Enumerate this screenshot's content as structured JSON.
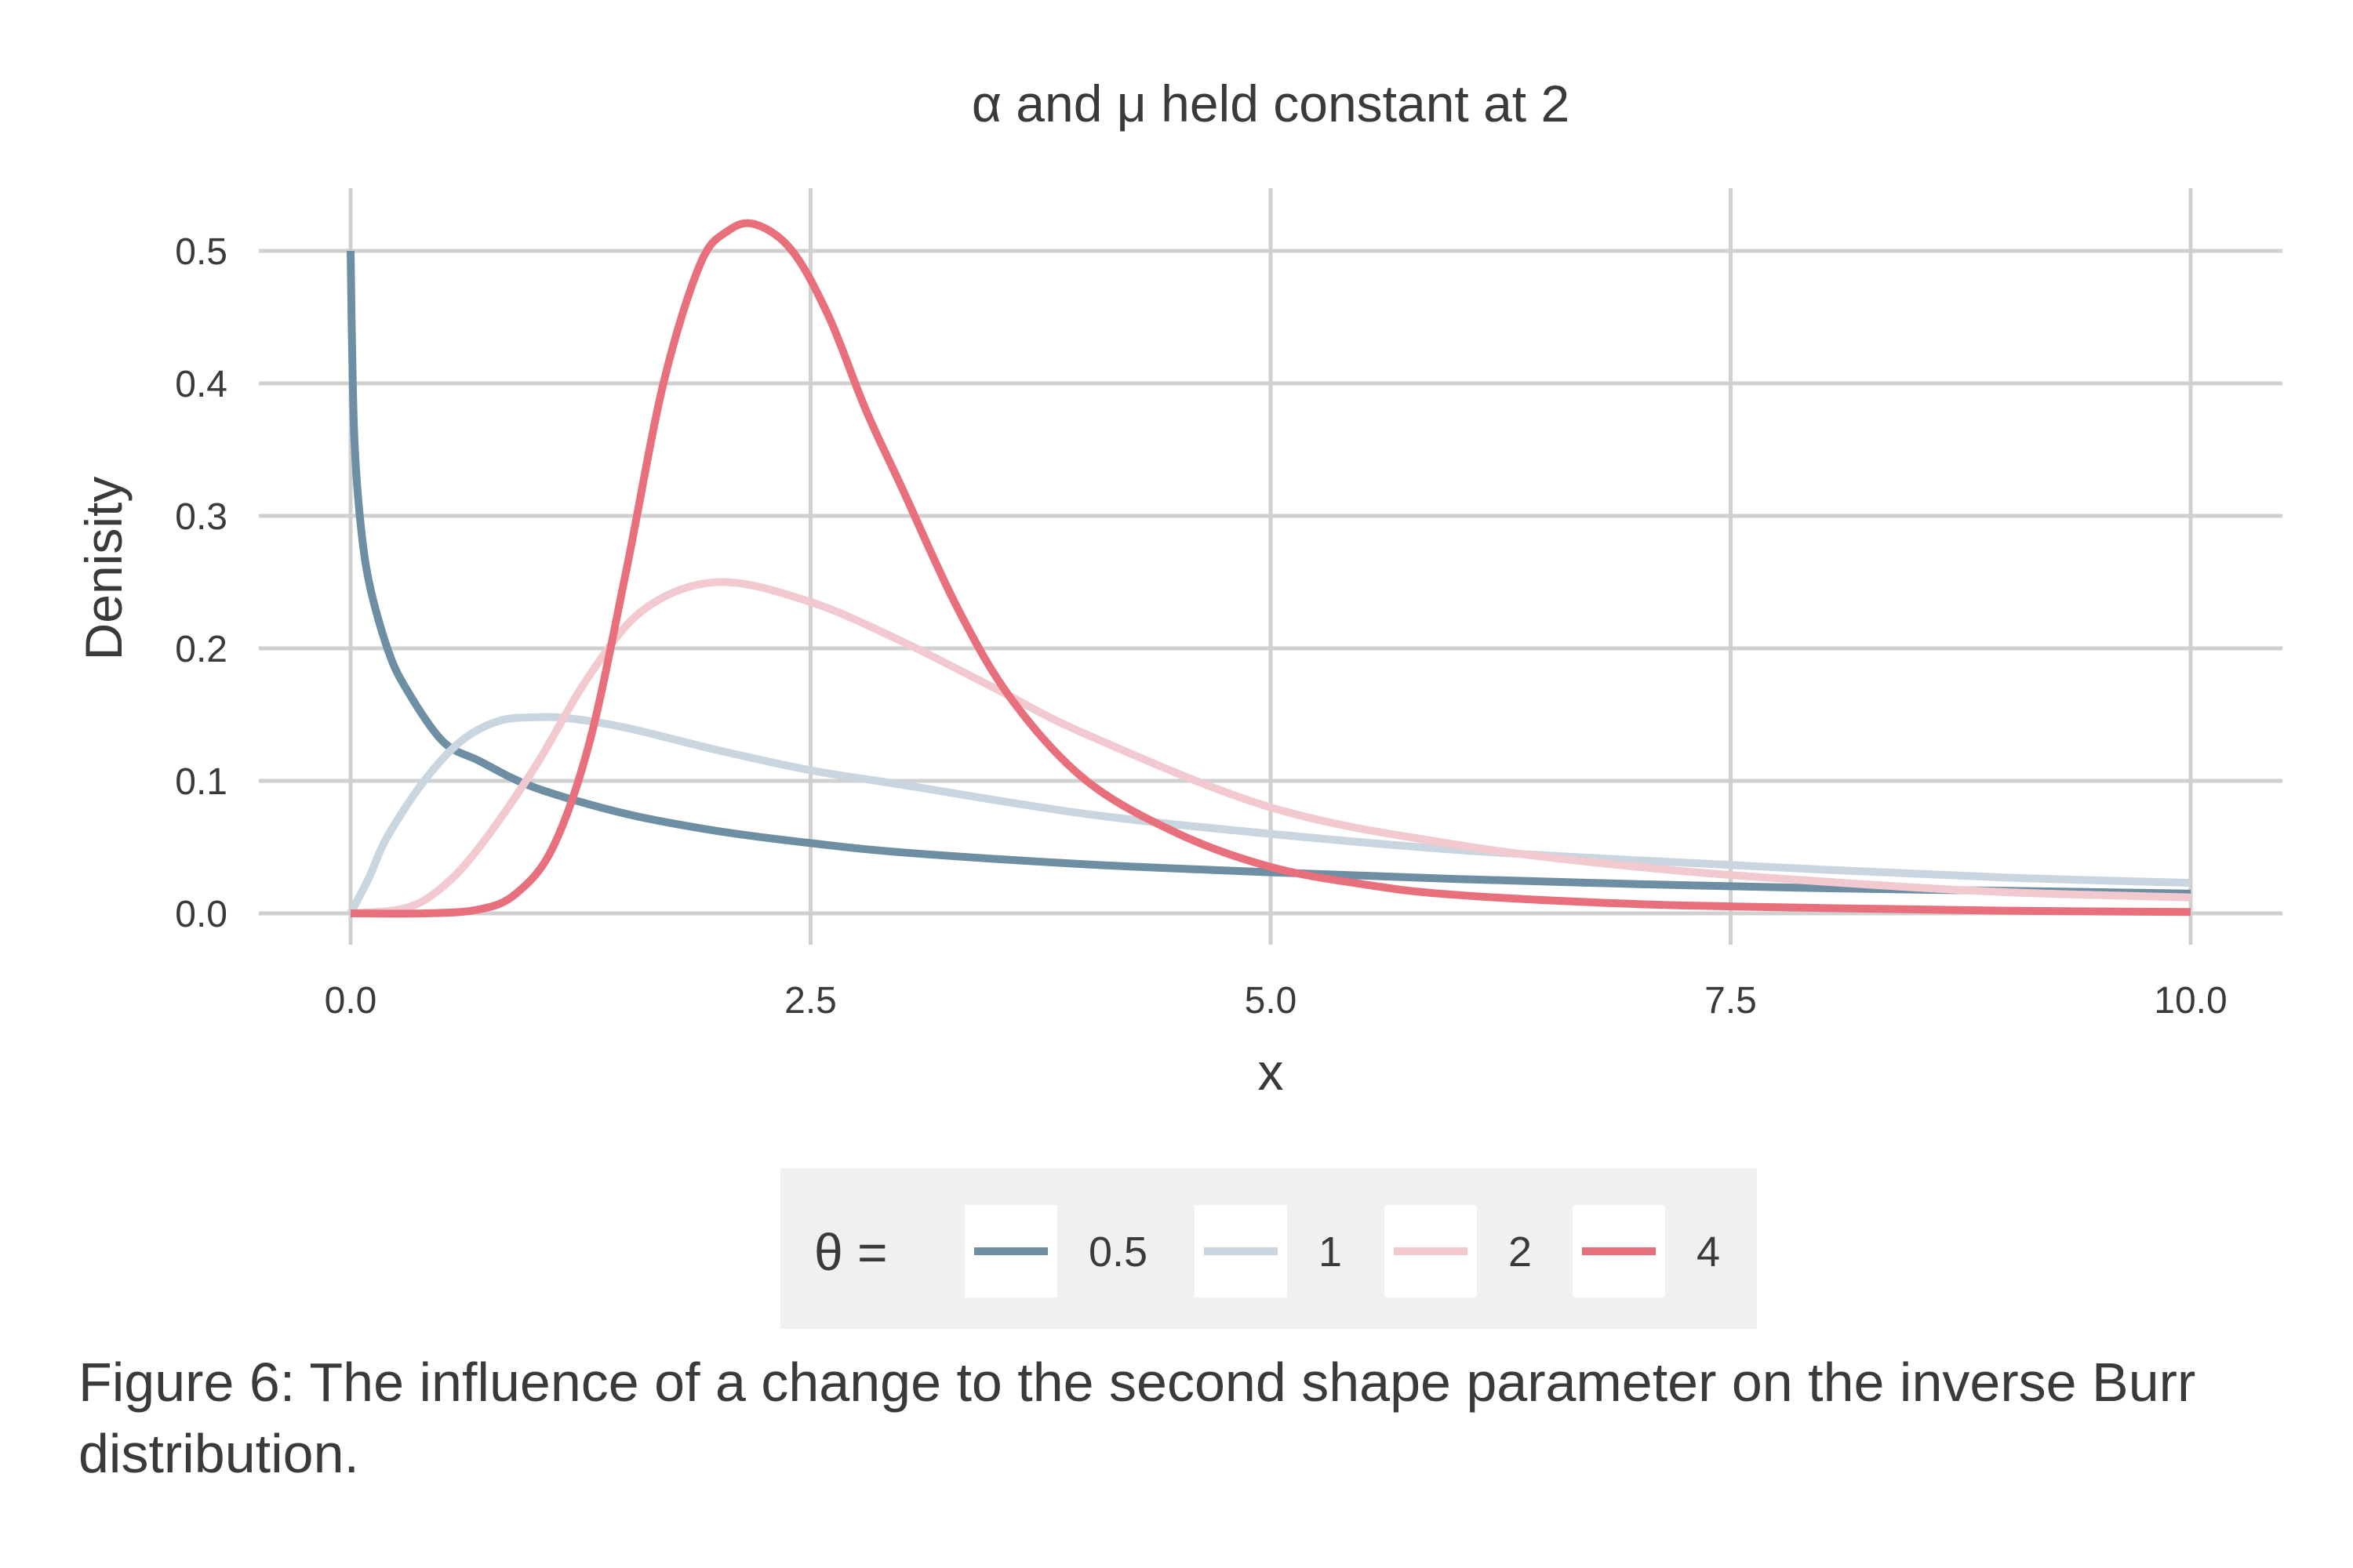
{
  "chart_data": {
    "type": "line",
    "title": "α and μ held constant at 2",
    "xlabel": "x",
    "ylabel": "Denisity",
    "xlim": [
      0,
      10
    ],
    "ylim": [
      0,
      0.5
    ],
    "x_ticks": [
      "0.0",
      "2.5",
      "5.0",
      "7.5",
      "10.0"
    ],
    "y_ticks": [
      "0.0",
      "0.1",
      "0.2",
      "0.3",
      "0.4",
      "0.5"
    ],
    "grid": true,
    "legend_placement": "bottom",
    "legend_title": "θ =",
    "series": [
      {
        "name": "0.5",
        "color": "#6d8ea3",
        "x": [
          0.0,
          0.005,
          0.02,
          0.05,
          0.1,
          0.2,
          0.3,
          0.5,
          0.7,
          1.0,
          1.5,
          2.0,
          2.5,
          3.0,
          4.0,
          5.0,
          6.0,
          7.0,
          8.0,
          9.0,
          10.0
        ],
        "y": [
          0.5,
          0.45,
          0.36,
          0.3,
          0.25,
          0.2,
          0.17,
          0.13,
          0.115,
          0.095,
          0.075,
          0.062,
          0.053,
          0.046,
          0.037,
          0.031,
          0.026,
          0.022,
          0.019,
          0.017,
          0.015
        ]
      },
      {
        "name": "1",
        "color": "#c9d6df",
        "x": [
          0.0,
          0.1,
          0.2,
          0.4,
          0.6,
          0.8,
          1.0,
          1.2,
          1.5,
          2.0,
          2.5,
          3.0,
          4.0,
          5.0,
          6.0,
          7.0,
          8.0,
          9.0,
          10.0
        ],
        "y": [
          0.0,
          0.027,
          0.058,
          0.1,
          0.13,
          0.145,
          0.148,
          0.147,
          0.14,
          0.123,
          0.108,
          0.097,
          0.075,
          0.06,
          0.048,
          0.04,
          0.033,
          0.027,
          0.023
        ]
      },
      {
        "name": "2",
        "color": "#f2c9ce",
        "x": [
          0.0,
          0.3,
          0.5,
          0.7,
          1.0,
          1.3,
          1.6,
          2.0,
          2.5,
          3.0,
          3.5,
          4.0,
          5.0,
          6.0,
          7.0,
          8.0,
          9.0,
          10.0
        ],
        "y": [
          0.0,
          0.004,
          0.02,
          0.05,
          0.11,
          0.18,
          0.23,
          0.25,
          0.235,
          0.205,
          0.17,
          0.135,
          0.08,
          0.052,
          0.035,
          0.024,
          0.016,
          0.012
        ]
      },
      {
        "name": "4",
        "color": "#e8707c",
        "x": [
          0.0,
          0.4,
          0.7,
          0.9,
          1.1,
          1.3,
          1.5,
          1.7,
          1.9,
          2.05,
          2.2,
          2.4,
          2.6,
          2.8,
          3.0,
          3.3,
          3.6,
          4.0,
          4.5,
          5.0,
          5.5,
          6.0,
          7.0,
          8.0,
          9.0,
          10.0
        ],
        "y": [
          0.0,
          0.0,
          0.003,
          0.015,
          0.05,
          0.13,
          0.26,
          0.4,
          0.49,
          0.515,
          0.52,
          0.5,
          0.45,
          0.38,
          0.32,
          0.23,
          0.16,
          0.1,
          0.06,
          0.035,
          0.022,
          0.014,
          0.007,
          0.004,
          0.002,
          0.001
        ]
      }
    ]
  },
  "caption": "Figure 6: The influence of a change to the second shape parameter on the inverse Burr distribution."
}
